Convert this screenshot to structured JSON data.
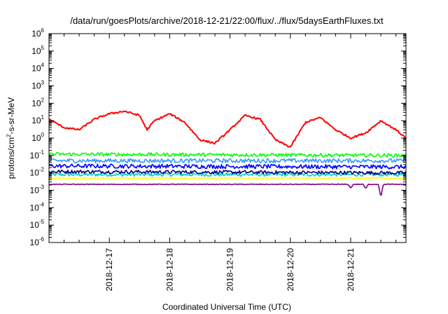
{
  "chart_data": {
    "type": "line",
    "title": "/data/run/goesPlots/archive/2018-12-21/22:00/flux/../flux/5daysEarthFluxes.txt",
    "xlabel": "Coordinated Universal Time (UTC)",
    "ylabel": "protons/cm2-s-sr-MeV",
    "ylabel_parts": {
      "pre": "protons/cm",
      "sup": "2",
      "post": "-s-sr-MeV"
    },
    "y_scale": "log",
    "ylim": [
      1e-06,
      1000000.0
    ],
    "y_tick_exponents": [
      -6,
      -5,
      -4,
      -3,
      -2,
      -1,
      0,
      1,
      2,
      3,
      4,
      5,
      6
    ],
    "y_tick_base": "10",
    "x_range": [
      "2018-12-16T00:00",
      "2018-12-21T22:00"
    ],
    "x_ticks": [
      "2018-12-17",
      "2018-12-18",
      "2018-12-19",
      "2018-12-20",
      "2018-12-21"
    ],
    "grid": false,
    "legend": "none",
    "series": [
      {
        "color": "#ff0000",
        "x": [
          "2018-12-16T00:00",
          "2018-12-16T06:00",
          "2018-12-16T12:00",
          "2018-12-16T18:00",
          "2018-12-17T00:00",
          "2018-12-17T06:00",
          "2018-12-17T12:00",
          "2018-12-17T15:00",
          "2018-12-17T18:00",
          "2018-12-18T00:00",
          "2018-12-18T06:00",
          "2018-12-18T12:00",
          "2018-12-18T18:00",
          "2018-12-19T00:00",
          "2018-12-19T06:00",
          "2018-12-19T12:00",
          "2018-12-19T18:00",
          "2018-12-20T00:00",
          "2018-12-20T06:00",
          "2018-12-20T12:00",
          "2018-12-20T18:00",
          "2018-12-21T00:00",
          "2018-12-21T06:00",
          "2018-12-21T12:00",
          "2018-12-21T18:00",
          "2018-12-21T22:00"
        ],
        "y": [
          12,
          4,
          3,
          12,
          25,
          35,
          20,
          3,
          10,
          25,
          8,
          0.8,
          0.5,
          3,
          20,
          12,
          0.8,
          0.3,
          8,
          15,
          3,
          1,
          2,
          10,
          3,
          1
        ]
      },
      {
        "color": "#00ff00",
        "x": [
          "2018-12-16T00:00",
          "2018-12-21T22:00"
        ],
        "y": [
          0.12,
          0.1
        ]
      },
      {
        "color": "#3399ff",
        "x": [
          "2018-12-16T00:00",
          "2018-12-21T22:00"
        ],
        "y": [
          0.05,
          0.05
        ]
      },
      {
        "color": "#0000ff",
        "x": [
          "2018-12-16T00:00",
          "2018-12-21T22:00"
        ],
        "y": [
          0.025,
          0.022
        ]
      },
      {
        "color": "#000080",
        "x": [
          "2018-12-16T00:00",
          "2018-12-21T22:00"
        ],
        "y": [
          0.012,
          0.01
        ]
      },
      {
        "color": "#00cccc",
        "x": [
          "2018-12-16T00:00",
          "2018-12-21T22:00"
        ],
        "y": [
          0.008,
          0.008
        ]
      },
      {
        "color": "#ffff00",
        "x": [
          "2018-12-16T00:00",
          "2018-12-21T22:00"
        ],
        "y": [
          0.005,
          0.005
        ]
      },
      {
        "color": "#800080",
        "x": [
          "2018-12-16T00:00",
          "2018-12-20T23:00",
          "2018-12-21T00:00",
          "2018-12-21T01:00",
          "2018-12-21T05:00",
          "2018-12-21T06:00",
          "2018-12-21T07:00",
          "2018-12-21T11:00",
          "2018-12-21T12:00",
          "2018-12-21T13:00",
          "2018-12-21T22:00"
        ],
        "y": [
          0.0022,
          0.0022,
          0.0013,
          0.0022,
          0.0022,
          0.0012,
          0.0022,
          0.0022,
          0.0004,
          0.0022,
          0.0022
        ]
      }
    ]
  }
}
